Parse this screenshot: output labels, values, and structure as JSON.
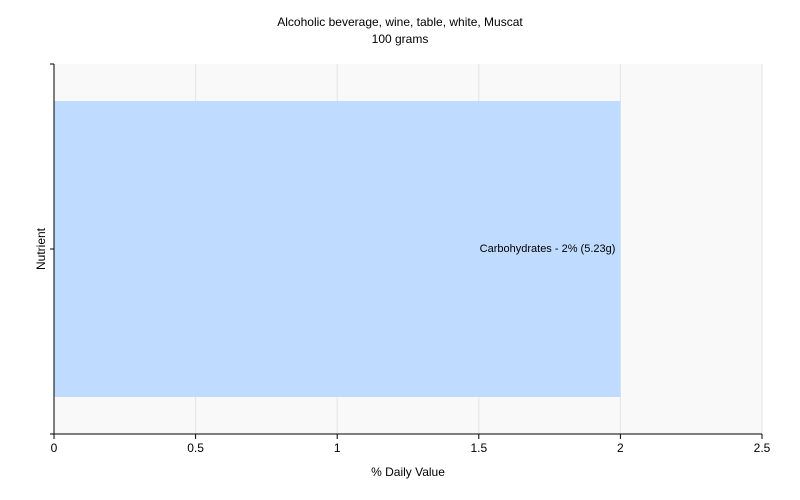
{
  "chart_data": {
    "type": "hbar",
    "title": "Alcoholic beverage, wine, table, white, Muscat",
    "subtitle": "100 grams",
    "x_label": "% Daily Value",
    "y_label": "Nutrient",
    "categories": [
      null
    ],
    "values": [
      2
    ],
    "value_labels": [
      "Carbohydrates - 2% (5.23g)"
    ],
    "color": "#bfdbff",
    "xlim": [
      0,
      2.5
    ],
    "xticks": [
      0,
      0.5,
      1,
      1.5,
      2,
      2.5
    ],
    "grid": true
  }
}
